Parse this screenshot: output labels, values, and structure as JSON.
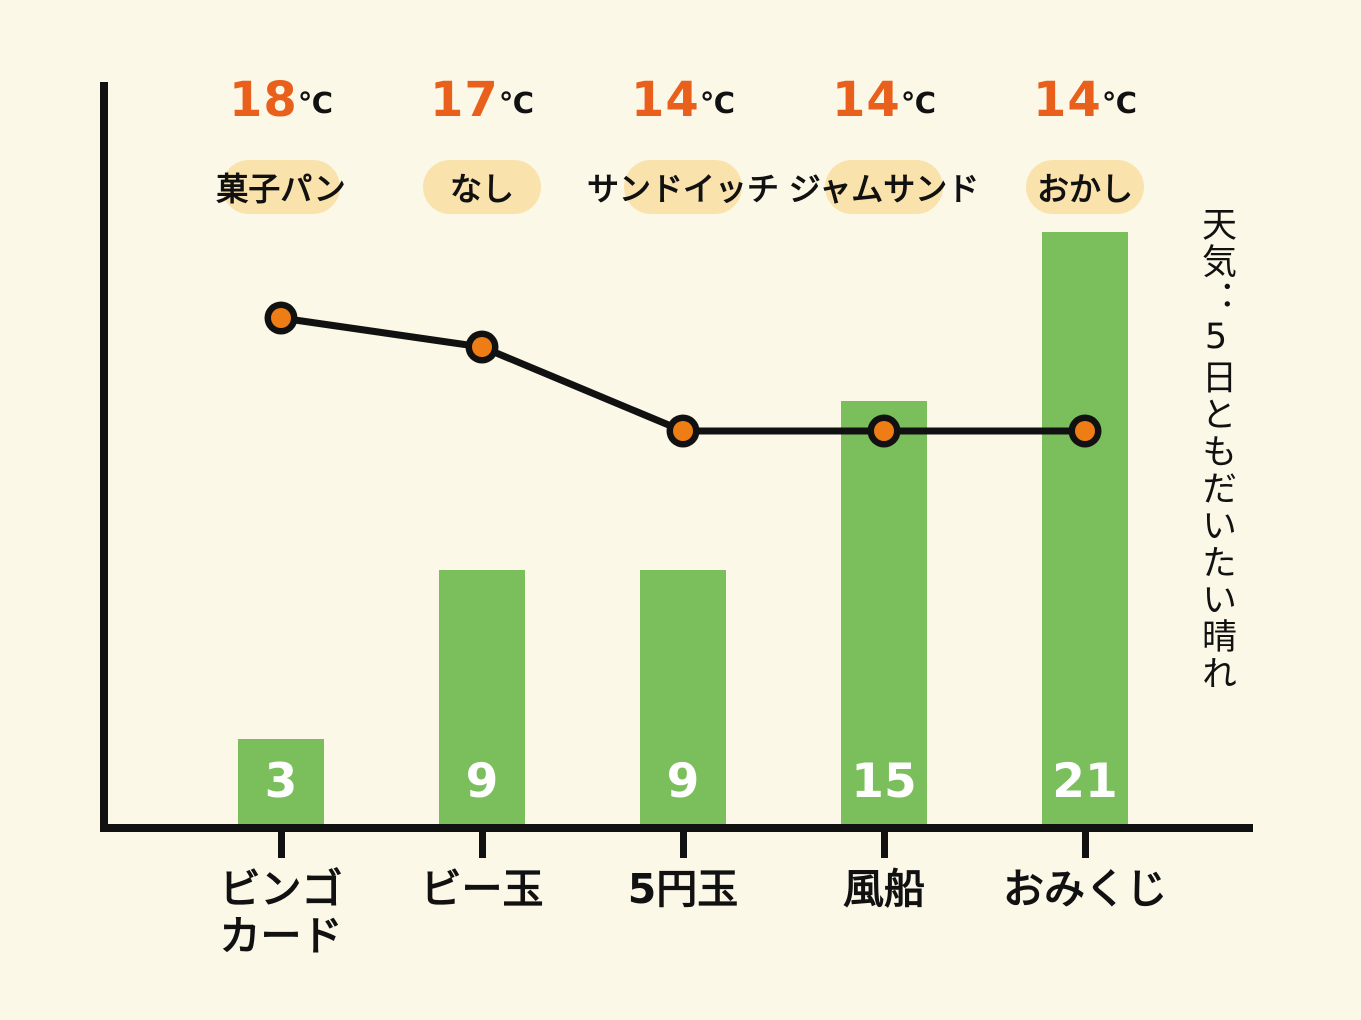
{
  "colors": {
    "background": "#FBF8E8",
    "bar": "#7ABF5B",
    "temp_text": "#E8601C",
    "dot": "#EE7D16",
    "line": "#111111",
    "pill": "#FAE2AC",
    "count_text": "#FFFFFF",
    "axis": "#111111"
  },
  "chart_data": {
    "type": "combo: bar + line",
    "categories": [
      "ビンゴカード",
      "ビー玉",
      "5円玉",
      "風船",
      "おみくじ"
    ],
    "category_display": [
      [
        "ビンゴ",
        "カード"
      ],
      [
        "ビー玉",
        ""
      ],
      [
        "5円玉",
        ""
      ],
      [
        "風船",
        ""
      ],
      [
        "おみくじ",
        ""
      ]
    ],
    "series": [
      {
        "name": "count-bars",
        "type": "bar",
        "values": [
          3,
          9,
          9,
          15,
          21
        ]
      },
      {
        "name": "temperature-line",
        "type": "line",
        "values": [
          18,
          17,
          14,
          14,
          14
        ],
        "unit": "℃"
      }
    ],
    "temp_unit": "℃",
    "point_labels": [
      "菓子パン",
      "なし",
      "サンドイッチ",
      "ジャムサンド",
      "おかし"
    ],
    "annotation": "天気：5日ともだいたい晴れ",
    "ylim": [
      0,
      26
    ],
    "grid": false,
    "legend": "none",
    "axis_tick_labels": "none"
  }
}
